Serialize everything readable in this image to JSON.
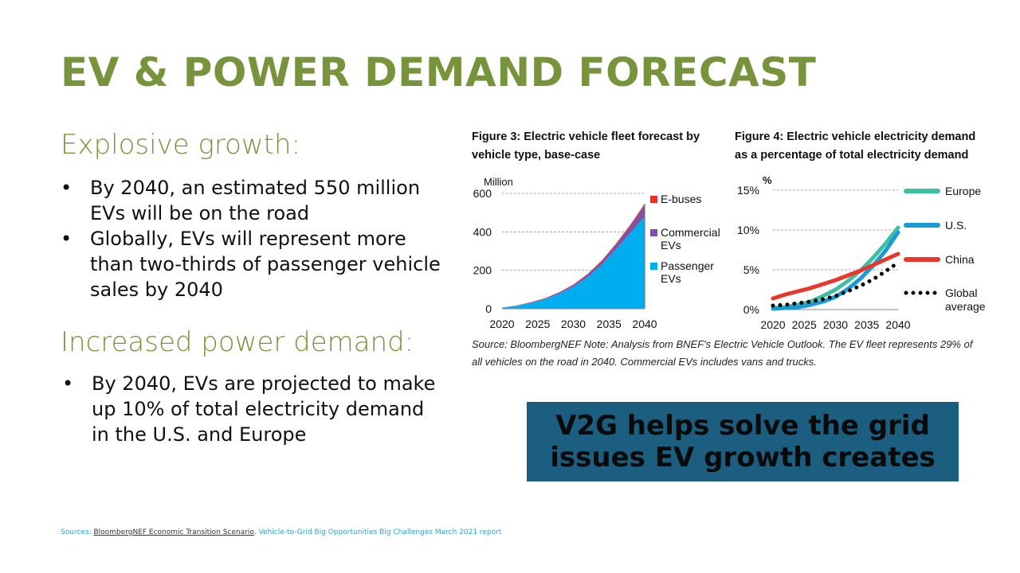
{
  "title": "EV & POWER DEMAND FORECAST",
  "sections": [
    {
      "heading": "Explosive growth:",
      "bullets": [
        "By 2040, an estimated 550 million EVs will be on the road",
        "Globally, EVs will represent more than two-thirds of passenger vehicle sales by 2040"
      ]
    },
    {
      "heading": "Increased power demand:",
      "bullets": [
        "By 2040, EVs are projected to make up 10% of total electricity demand in the U.S. and Europe"
      ]
    }
  ],
  "figure_note": "Source: BloombergNEF Note: Analysis from BNEF's Electric Vehicle Outlook. The EV fleet represents 29% of all vehicles on the road in 2040. Commercial EVs includes vans and trucks.",
  "callout": "V2G helps solve the grid issues EV growth creates",
  "sources": {
    "prefix": "Sources: ",
    "link": "BloombergNEF Economic Transition Scenario",
    "rest": ", Vehicle-to-Grid Big Opportunities Big Challenges March 2021 report"
  },
  "colors": {
    "title_green": "#77933C",
    "callout_bg": "#1B5E80",
    "sources_blue": "#2EA3CD"
  },
  "chart_data": [
    {
      "type": "area",
      "stacked": true,
      "title": "Figure 3: Electric vehicle fleet forecast by vehicle type, base-case",
      "ylabel": "Million",
      "ylim": [
        0,
        600
      ],
      "yticks": [
        "0",
        "200",
        "400",
        "600"
      ],
      "xticks": [
        "2020",
        "2025",
        "2030",
        "2035",
        "2040"
      ],
      "x": [
        2020,
        2022,
        2024,
        2026,
        2028,
        2030,
        2032,
        2034,
        2036,
        2038,
        2040
      ],
      "grid": true,
      "legend": "right",
      "series": [
        {
          "name": "Passenger EVs",
          "color": "#00AEEF",
          "values": [
            5,
            15,
            30,
            50,
            78,
            115,
            165,
            230,
            310,
            395,
            480
          ]
        },
        {
          "name": "Commercial EVs",
          "color": "#7F51A3",
          "values": [
            0,
            1,
            2,
            3,
            5,
            8,
            12,
            18,
            25,
            38,
            60
          ]
        },
        {
          "name": "E-buses",
          "color": "#E8312E",
          "values": [
            1,
            1,
            2,
            2,
            3,
            3,
            4,
            4,
            5,
            5,
            6
          ]
        }
      ]
    },
    {
      "type": "line",
      "title": "Figure 4: Electric vehicle electricity demand as a percentage of total electricity demand",
      "ylabel": "%",
      "ylim": [
        0,
        15
      ],
      "yticks": [
        "0%",
        "5%",
        "10%",
        "15%"
      ],
      "xticks": [
        "2020",
        "2025",
        "2030",
        "2035",
        "2040"
      ],
      "x": [
        2020,
        2022,
        2024,
        2026,
        2028,
        2030,
        2032,
        2034,
        2036,
        2038,
        2040
      ],
      "grid": true,
      "legend": "right",
      "series": [
        {
          "name": "Europe",
          "color": "#3DBFA3",
          "style": "solid",
          "values": [
            0.2,
            0.3,
            0.6,
            1.0,
            1.7,
            2.5,
            3.6,
            4.9,
            6.5,
            8.3,
            10.3
          ]
        },
        {
          "name": "U.S.",
          "color": "#1A9AD6",
          "style": "solid",
          "values": [
            0.1,
            0.2,
            0.3,
            0.6,
            1.0,
            1.6,
            2.6,
            3.9,
            5.5,
            7.4,
            9.7
          ]
        },
        {
          "name": "China",
          "color": "#E8382C",
          "style": "solid",
          "values": [
            1.4,
            1.9,
            2.3,
            2.7,
            3.2,
            3.7,
            4.3,
            4.9,
            5.6,
            6.3,
            7.0
          ]
        },
        {
          "name": "Global average",
          "color": "#000000",
          "style": "dotted",
          "values": [
            0.5,
            0.6,
            0.8,
            1.0,
            1.3,
            1.7,
            2.3,
            3.0,
            3.8,
            4.8,
            5.9
          ]
        }
      ]
    }
  ]
}
